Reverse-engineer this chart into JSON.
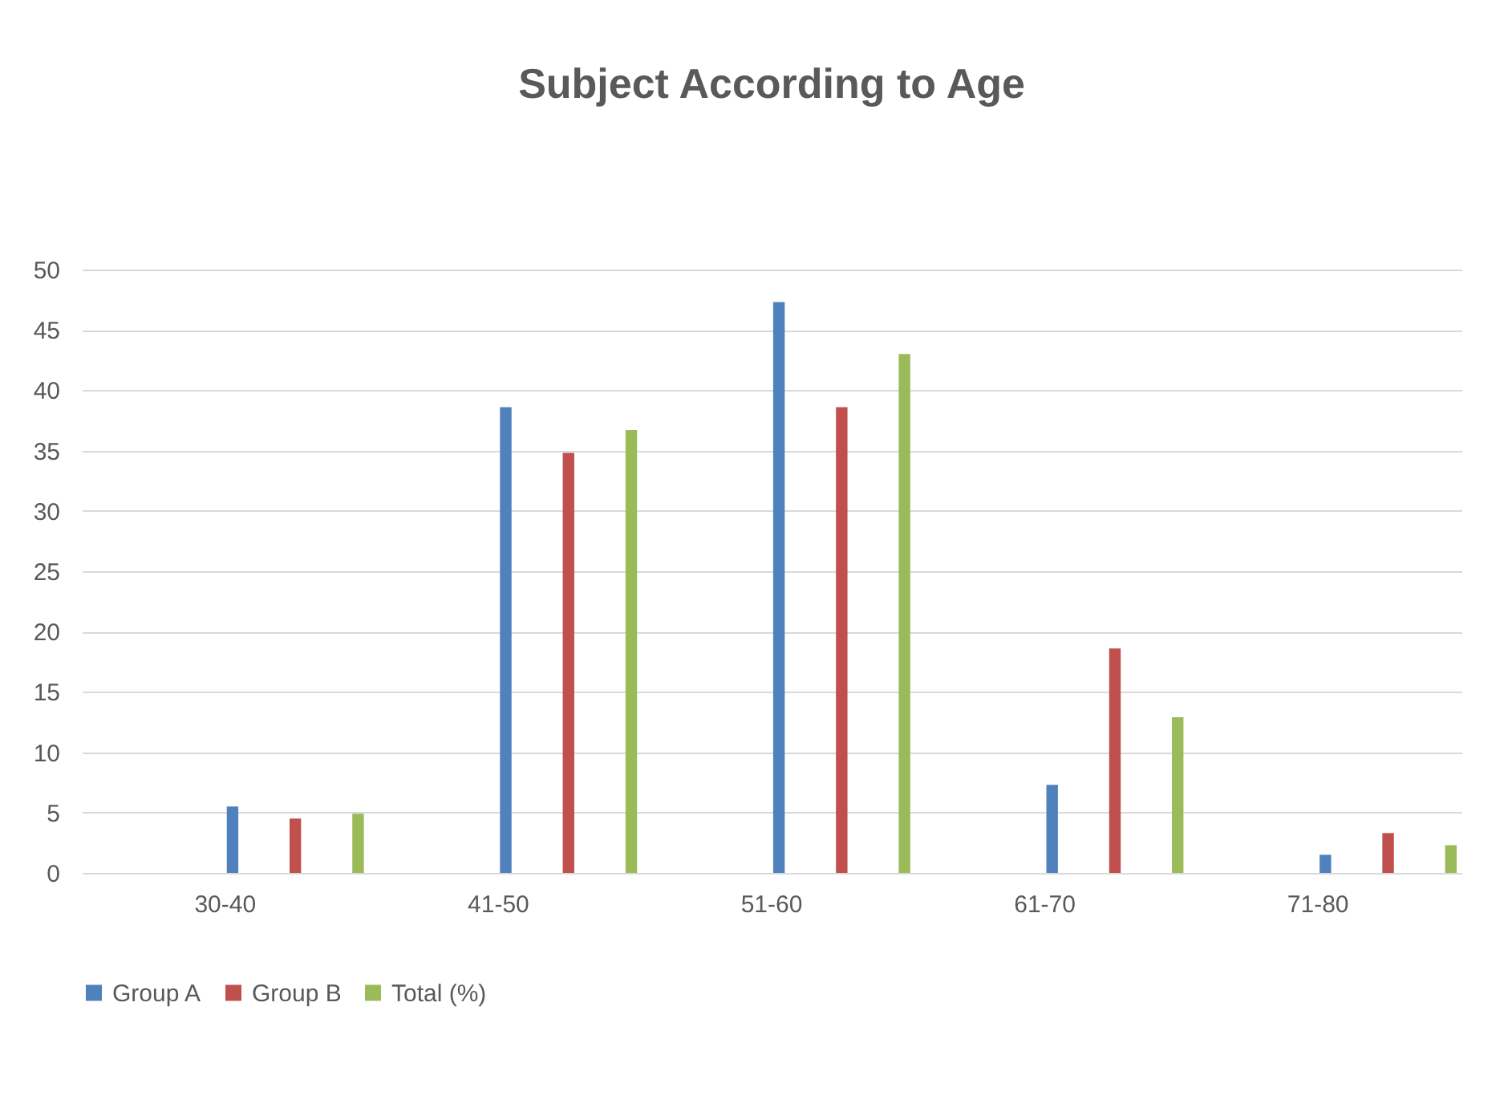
{
  "chart_data": {
    "type": "bar",
    "title": "Subject According to Age",
    "categories": [
      "30-40",
      "41-50",
      "51-60",
      "61-70",
      "71-80"
    ],
    "series": [
      {
        "name": "Group A",
        "color": "#4f81bd",
        "values": [
          5.5,
          38.6,
          47.3,
          7.3,
          1.5
        ]
      },
      {
        "name": "Group B",
        "color": "#c0504d",
        "values": [
          4.5,
          34.8,
          38.6,
          18.6,
          3.3
        ]
      },
      {
        "name": "Total (%)",
        "color": "#9bbb59",
        "values": [
          4.9,
          36.7,
          43,
          12.9,
          2.3
        ]
      }
    ],
    "ylim": [
      0,
      50
    ],
    "yticks": [
      0,
      5,
      10,
      15,
      20,
      25,
      30,
      35,
      40,
      45,
      50
    ],
    "grid": "y",
    "legend": "bottom"
  }
}
